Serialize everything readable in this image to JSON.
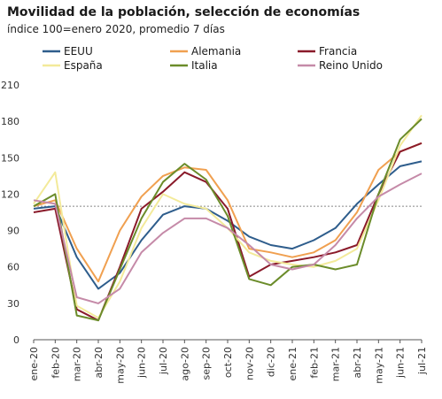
{
  "chart_data": {
    "type": "line",
    "title": "Movilidad de la población, selección de economías",
    "subtitle": "índice 100=enero 2020, promedio 7 días",
    "xlabel": "",
    "ylabel": "",
    "ylim": [
      0,
      210
    ],
    "yticks": [
      0,
      30,
      60,
      90,
      120,
      150,
      180,
      210
    ],
    "reference_line": 110,
    "x_tick_labels": [
      "ene-20",
      "feb-20",
      "mar-20",
      "abr-20",
      "may-20",
      "jun-20",
      "jul-20",
      "ago-20",
      "sep-20",
      "oct-20",
      "nov-20",
      "dic-20",
      "ene-21",
      "feb-21",
      "mar-21",
      "abr-21",
      "may-21",
      "jun-21",
      "jul-21"
    ],
    "x": [
      "ene-20",
      "feb-20",
      "mar-20",
      "abr-20",
      "may-20",
      "jun-20",
      "jul-20",
      "ago-20",
      "sep-20",
      "oct-20",
      "nov-20",
      "dic-20",
      "ene-21",
      "feb-21",
      "mar-21",
      "abr-21",
      "may-21",
      "jun-21",
      "jul-21"
    ],
    "legend_position": "top",
    "series": [
      {
        "name": "EEUU",
        "color": "#2e5d8c",
        "values": [
          108,
          110,
          68,
          42,
          55,
          82,
          103,
          110,
          108,
          98,
          85,
          78,
          75,
          82,
          92,
          112,
          128,
          143,
          147
        ]
      },
      {
        "name": "Alemania",
        "color": "#f0a050",
        "values": [
          110,
          115,
          75,
          48,
          90,
          118,
          135,
          142,
          140,
          115,
          75,
          72,
          68,
          72,
          82,
          105,
          140,
          155,
          162
        ]
      },
      {
        "name": "Francia",
        "color": "#8a1a2a",
        "values": [
          105,
          108,
          25,
          16,
          60,
          108,
          122,
          138,
          130,
          108,
          52,
          62,
          65,
          68,
          72,
          78,
          120,
          155,
          162
        ]
      },
      {
        "name": "España",
        "color": "#f3ea9a",
        "values": [
          112,
          138,
          28,
          18,
          48,
          92,
          120,
          112,
          108,
          92,
          72,
          65,
          62,
          60,
          65,
          75,
          115,
          160,
          185
        ]
      },
      {
        "name": "Italia",
        "color": "#6b8c2a",
        "values": [
          110,
          120,
          20,
          16,
          58,
          100,
          130,
          145,
          132,
          102,
          50,
          45,
          60,
          62,
          58,
          62,
          120,
          165,
          182
        ]
      },
      {
        "name": "Reino Unido",
        "color": "#c58aa8",
        "values": [
          115,
          112,
          35,
          30,
          42,
          72,
          88,
          100,
          100,
          92,
          78,
          62,
          58,
          62,
          78,
          100,
          118,
          128,
          137
        ]
      }
    ]
  }
}
